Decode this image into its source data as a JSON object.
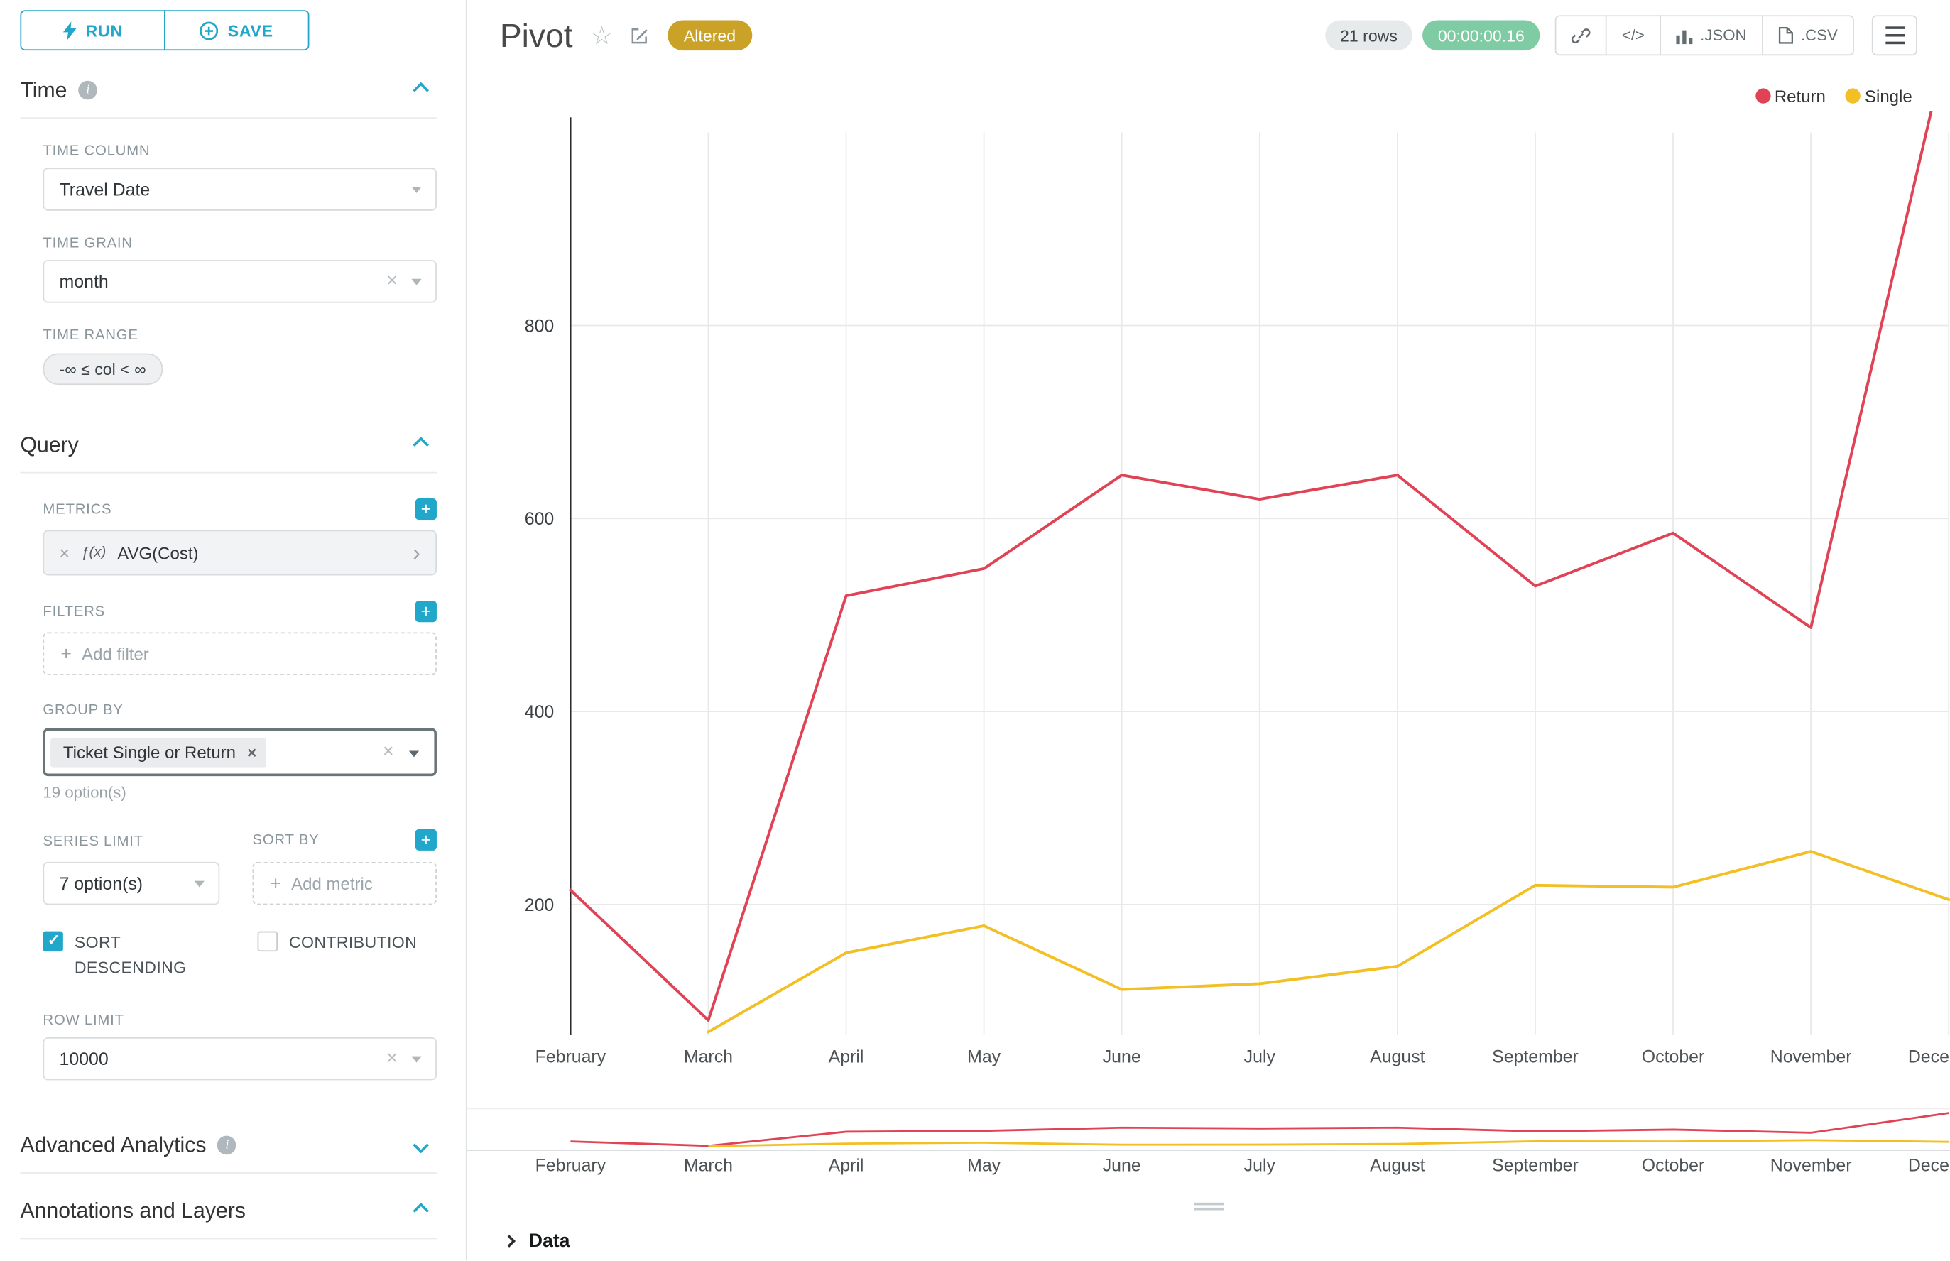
{
  "toolbar": {
    "run": "RUN",
    "save": "SAVE"
  },
  "icons": {
    "star": "☆",
    "code": "</>",
    "clear": "×",
    "plus": "+",
    "caret": "›",
    "info": "i"
  },
  "colors": {
    "accent": "#20a7c9",
    "altered_badge": "#c9a227",
    "timer_badge": "#7fcba4",
    "return_series": "#e04355",
    "single_series": "#f2bf24"
  },
  "time": {
    "title": "Time",
    "time_column": {
      "label": "TIME COLUMN",
      "value": "Travel Date"
    },
    "time_grain": {
      "label": "TIME GRAIN",
      "value": "month"
    },
    "time_range": {
      "label": "TIME RANGE",
      "value": "-∞ ≤ col < ∞"
    }
  },
  "query": {
    "title": "Query",
    "metrics": {
      "label": "METRICS",
      "metric_fx": "ƒ(x)",
      "metric_name": "AVG(Cost)"
    },
    "filters": {
      "label": "FILTERS",
      "placeholder": "Add filter"
    },
    "group_by": {
      "label": "GROUP BY",
      "tag": "Ticket Single or Return",
      "hint": "19 option(s)"
    },
    "series_limit": {
      "label": "SERIES LIMIT",
      "value": "7 option(s)"
    },
    "sort_by": {
      "label": "SORT BY",
      "placeholder": "Add metric"
    },
    "sort_descending": {
      "label": "SORT DESCENDING",
      "checked": true
    },
    "contribution": {
      "label": "CONTRIBUTION",
      "checked": false
    },
    "row_limit": {
      "label": "ROW LIMIT",
      "value": "10000"
    }
  },
  "advanced_analytics": {
    "title": "Advanced Analytics"
  },
  "annotations": {
    "title": "Annotations and Layers"
  },
  "header": {
    "title": "Pivot",
    "badge": "Altered",
    "rows_badge": "21 rows",
    "timer_badge": "00:00:00.16",
    "export_json": ".JSON",
    "export_csv": ".CSV"
  },
  "data_panel": {
    "title": "Data"
  },
  "chart_data": {
    "type": "line",
    "title": "Pivot",
    "xlabel": "",
    "ylabel": "",
    "categories": [
      "February",
      "March",
      "April",
      "May",
      "June",
      "July",
      "August",
      "September",
      "October",
      "November",
      "December"
    ],
    "series": [
      {
        "name": "Return",
        "color": "#e04355",
        "values": [
          215,
          80,
          520,
          548,
          645,
          620,
          645,
          530,
          585,
          487,
          1100
        ]
      },
      {
        "name": "Single",
        "color": "#f2bf24",
        "values": [
          null,
          68,
          150,
          178,
          112,
          118,
          136,
          220,
          218,
          255,
          205
        ]
      }
    ],
    "y_ticks": [
      200,
      400,
      600,
      800
    ],
    "y_domain": [
      65,
      1000
    ],
    "grid": true,
    "legend_position": "top-right"
  }
}
